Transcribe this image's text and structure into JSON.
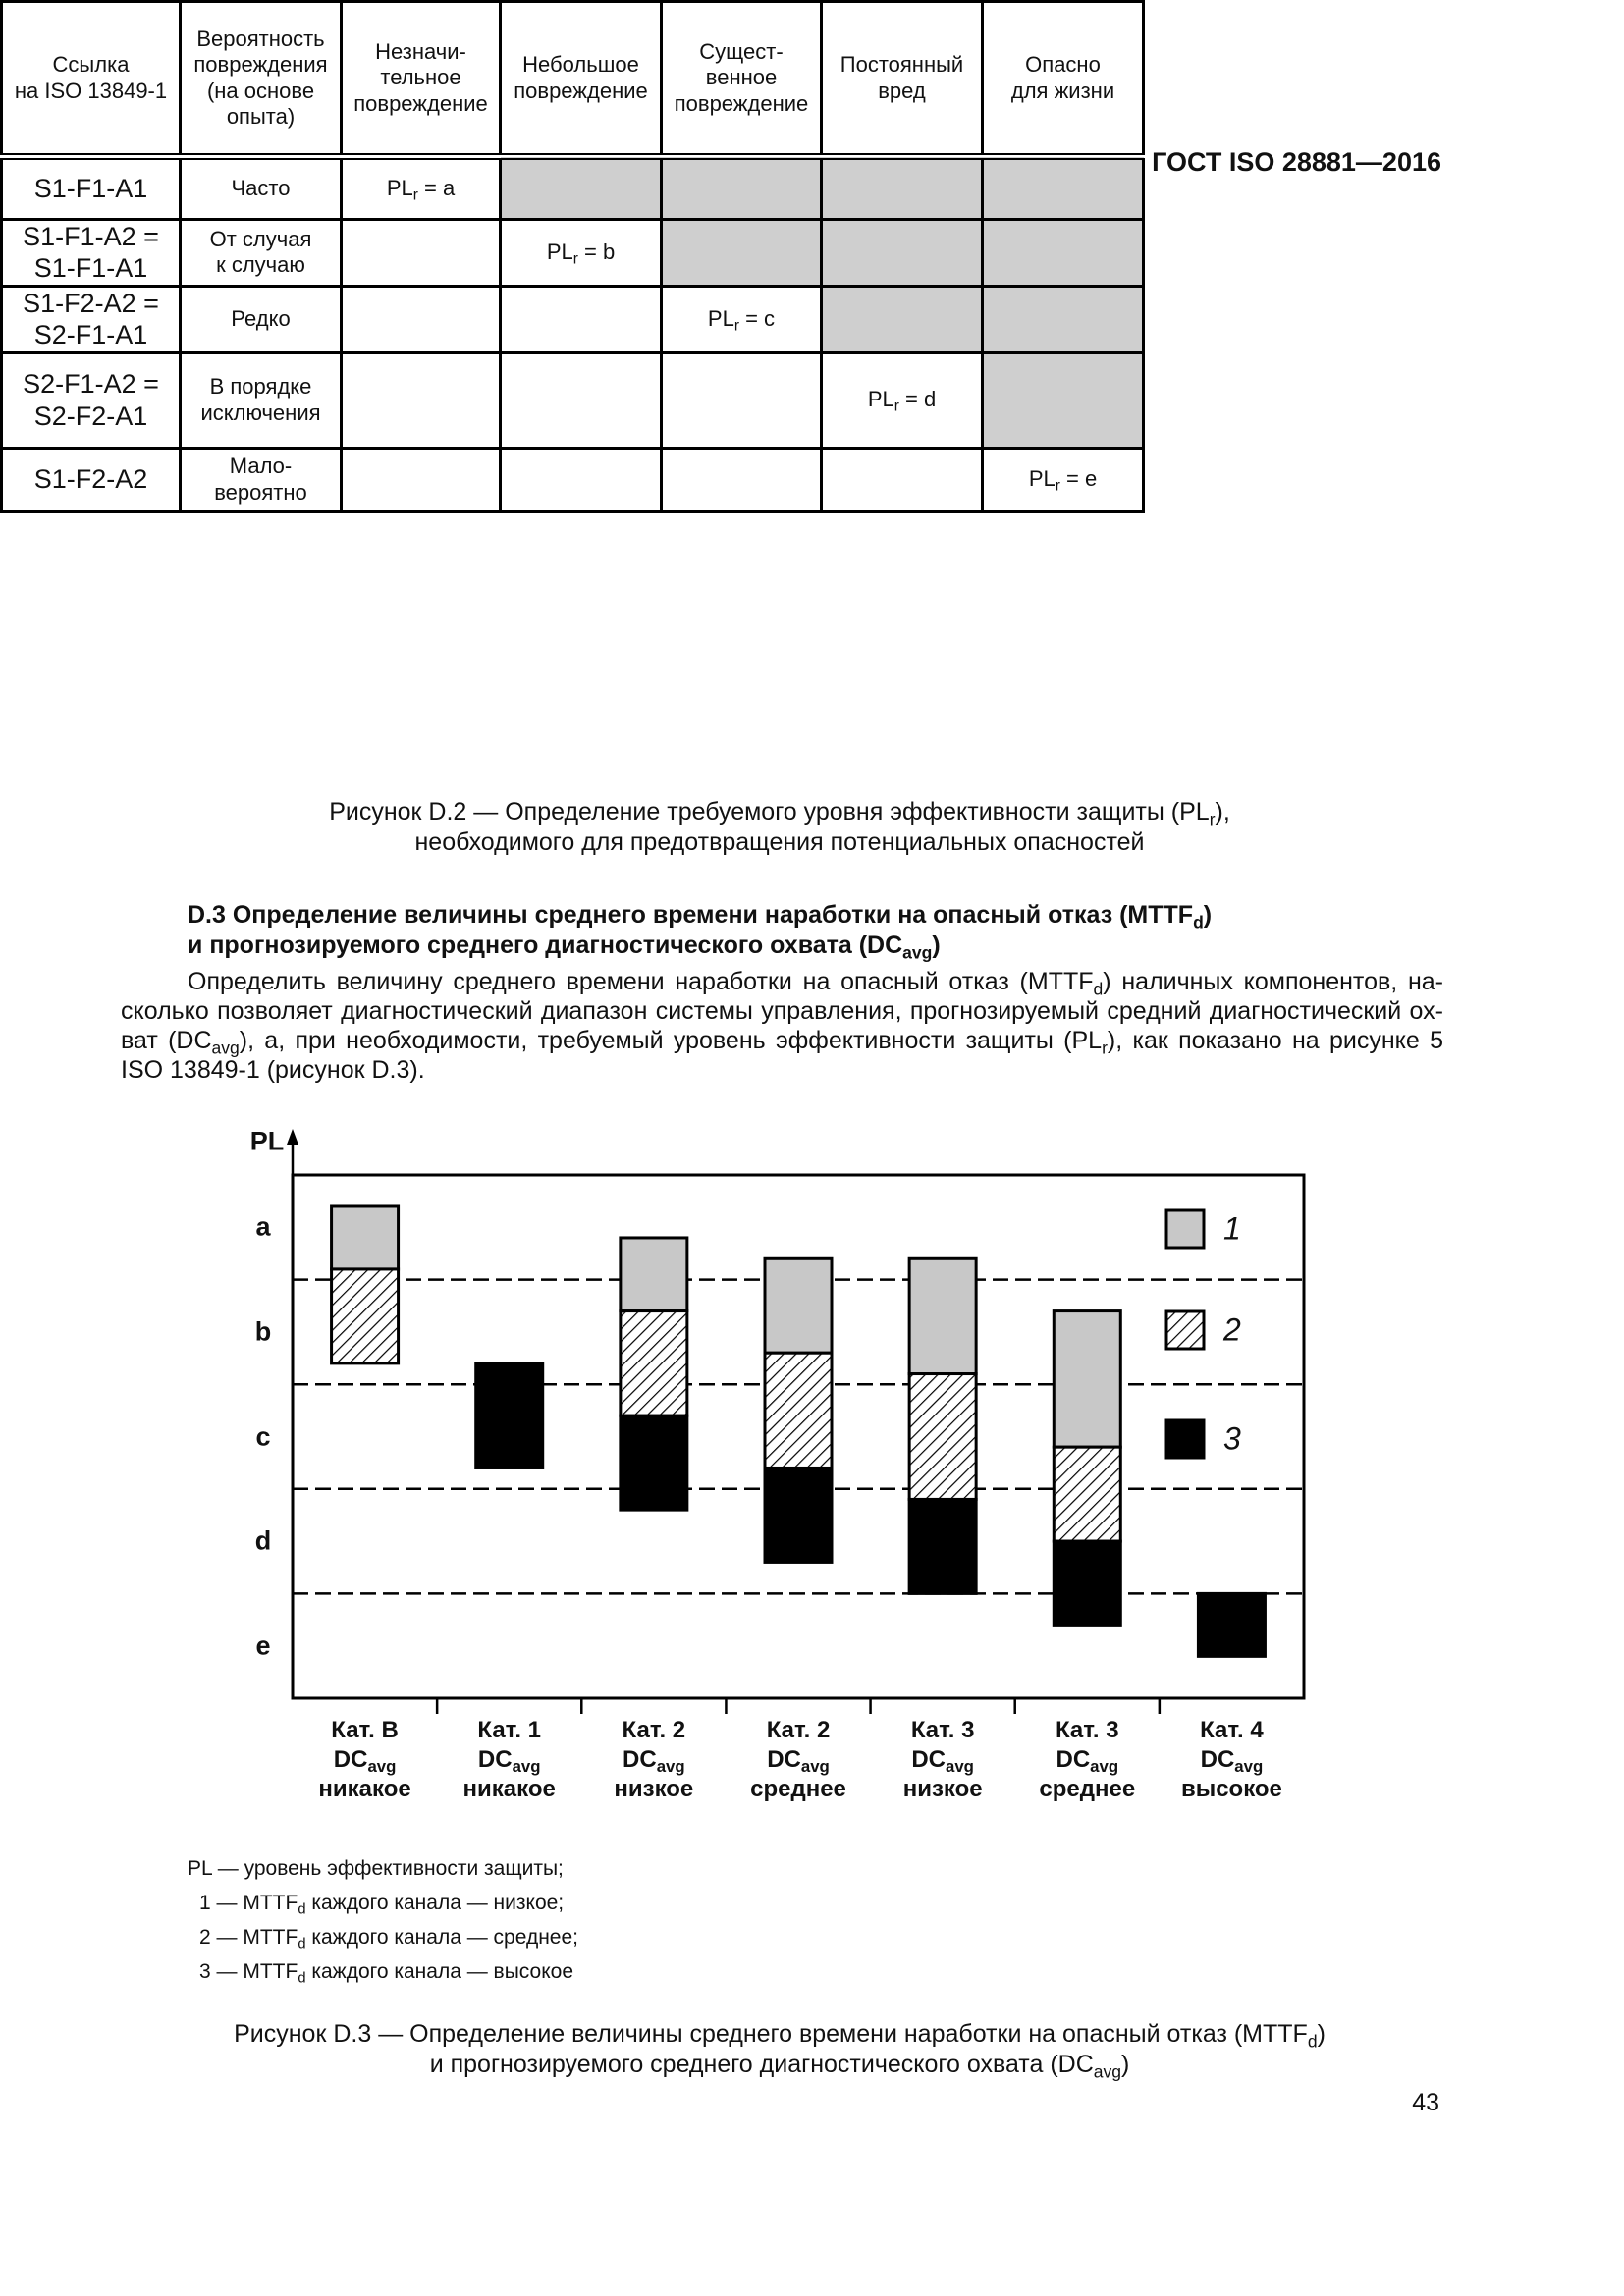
{
  "header": {
    "title": "ГОСТ ISO 28881—2016"
  },
  "table": {
    "header": [
      "Ссылка\nна ISO 13849-1",
      "Вероятность\nповреждения\n(на основе\nопыта)",
      "Незначи-\nтельное\nповреждение",
      "Небольшое\nповреждение",
      "Сущест-\nвенное\nповреждение",
      "Постоянный\nвред",
      "Опасно\nдля жизни"
    ],
    "rows": [
      [
        "S1-F1-A1",
        "Часто",
        [
          "PL",
          {
            "sub": "r"
          },
          " = a"
        ],
        null,
        null,
        null,
        null
      ],
      [
        "S1-F1-A2 =\nS1-F1-A1",
        "От случая\nк случаю",
        null,
        [
          "PL",
          {
            "sub": "r"
          },
          " = b"
        ],
        null,
        null,
        null
      ],
      [
        "S1-F2-A2 =\nS2-F1-A1",
        "Редко",
        null,
        null,
        [
          "PL",
          {
            "sub": "r"
          },
          " = c"
        ],
        null,
        null
      ],
      [
        "S2-F1-A2 =\nS2-F2-A1",
        "В порядке\nисключения",
        null,
        null,
        null,
        [
          "PL",
          {
            "sub": "r"
          },
          " = d"
        ],
        null
      ],
      [
        "S1-F2-A2",
        "Мало-\nвероятно",
        null,
        null,
        null,
        null,
        [
          "PL",
          {
            "sub": "r"
          },
          " = e"
        ]
      ]
    ]
  },
  "caption_d2": [
    "Рисунок D.2 — Определение требуемого уровня эффективности защиты (PL",
    {
      "sub": "r"
    },
    "),\nнеобходимого для предотвращения потенциальных опасностей"
  ],
  "section_heading": [
    "D.3 Определение величины среднего времени наработки на опасный отказ (MTTF",
    {
      "sub": "d"
    },
    ")\nи прогнозируемого среднего диагностического охвата (DC",
    {
      "sub": "avg"
    },
    ")"
  ],
  "paragraph": [
    [
      "Определить величину среднего времени наработки на опасный отказ (MTTF",
      {
        "sub": "d"
      },
      ") наличных компонентов, на-"
    ],
    [
      "сколько позволяет диагностический диапазон системы управления, прогнозируемый средний диагностический ох-"
    ],
    [
      "ват (DC",
      {
        "sub": "avg"
      },
      "), а, при необходимости, требуемый уровень эффективности защиты (PL",
      {
        "sub": "r"
      },
      "), как показано на рисунке 5"
    ],
    [
      "ISO 13849-1 (рисунок D.3)."
    ]
  ],
  "chart_data": {
    "type": "floating-bar",
    "y_label": "PL",
    "ylim": [
      0,
      5
    ],
    "yticks": [
      {
        "value": 0.5,
        "label": "e"
      },
      {
        "value": 1.5,
        "label": "d"
      },
      {
        "value": 2.5,
        "label": "c"
      },
      {
        "value": 3.5,
        "label": "b"
      },
      {
        "value": 4.5,
        "label": "a"
      }
    ],
    "dashed_lines": [
      1,
      2,
      3,
      4
    ],
    "categories": [
      [
        "Кат. B\nDC",
        {
          "sub": "avg"
        },
        "\nникакое"
      ],
      [
        "Кат. 1\nDC",
        {
          "sub": "avg"
        },
        "\nникакое"
      ],
      [
        "Кат. 2\nDC",
        {
          "sub": "avg"
        },
        "\nнизкое"
      ],
      [
        "Кат. 2\nDC",
        {
          "sub": "avg"
        },
        "\nсреднее"
      ],
      [
        "Кат. 3\nDC",
        {
          "sub": "avg"
        },
        "\nнизкое"
      ],
      [
        "Кат. 3\nDC",
        {
          "sub": "avg"
        },
        "\nсреднее"
      ],
      [
        "Кат. 4\nDC",
        {
          "sub": "avg"
        },
        "\nвысокое"
      ]
    ],
    "series": [
      {
        "name": "1",
        "color": "#c8c8c8",
        "low": [
          4.1,
          null,
          3.7,
          3.3,
          3.1,
          2.4,
          null
        ],
        "high": [
          4.7,
          null,
          4.4,
          4.2,
          4.2,
          3.7,
          null
        ]
      },
      {
        "name": "2",
        "color": "hatch",
        "low": [
          3.2,
          null,
          2.7,
          2.2,
          1.9,
          1.5,
          null
        ],
        "high": [
          4.1,
          null,
          3.7,
          3.3,
          3.1,
          2.4,
          null
        ]
      },
      {
        "name": "3",
        "color": "#000000",
        "low": [
          null,
          2.2,
          1.8,
          1.3,
          1.0,
          0.7,
          0.4
        ],
        "high": [
          null,
          3.2,
          2.7,
          2.2,
          1.9,
          1.5,
          1.0
        ]
      }
    ],
    "legend": "upper right"
  },
  "notes": [
    [
      "PL — уровень эффективности защиты;"
    ],
    [
      "1 — MTTF",
      {
        "sub": "d"
      },
      " каждого канала — низкое;"
    ],
    [
      "2 — MTTF",
      {
        "sub": "d"
      },
      " каждого канала — среднее;"
    ],
    [
      "3 — MTTF",
      {
        "sub": "d"
      },
      " каждого канала — высокое"
    ]
  ],
  "caption_d3": [
    "Рисунок D.3 — Определение величины среднего времени наработки на опасный отказ (MTTF",
    {
      "sub": "d"
    },
    ")\nи прогнозируемого среднего диагностического охвата (DC",
    {
      "sub": "avg"
    },
    ")"
  ],
  "page_number": 43
}
